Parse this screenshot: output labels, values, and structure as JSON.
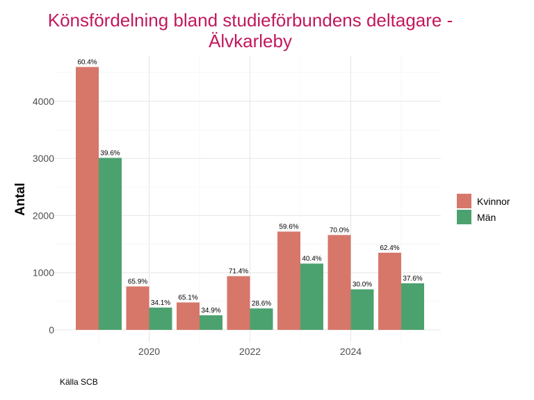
{
  "chart_data": {
    "type": "bar",
    "title_lines": [
      "Könsfördelning bland studieförbundens deltagare -",
      "Älvkarleby"
    ],
    "ylabel": "Antal",
    "xlabel": "",
    "caption": "Källa SCB",
    "years": [
      2019,
      2020,
      2021,
      2022,
      2023,
      2024,
      2025
    ],
    "x_tick_labels": [
      "2020",
      "2022",
      "2024"
    ],
    "x_tick_years": [
      2020,
      2022,
      2024
    ],
    "y_ticks": [
      0,
      1000,
      2000,
      3000,
      4000
    ],
    "ylim": [
      0,
      4800
    ],
    "grid": true,
    "legend_position": "right",
    "series": [
      {
        "name": "Kvinnor",
        "color": "#d6776a",
        "values": [
          4600,
          760,
          480,
          940,
          1720,
          1660,
          1350
        ],
        "labels": [
          "60.4%",
          "65.9%",
          "65.1%",
          "71.4%",
          "59.6%",
          "70.0%",
          "62.4%"
        ]
      },
      {
        "name": "Män",
        "color": "#4ca26f",
        "values": [
          3010,
          390,
          255,
          375,
          1160,
          710,
          815
        ],
        "labels": [
          "39.6%",
          "34.1%",
          "34.9%",
          "28.6%",
          "40.4%",
          "30.0%",
          "37.6%"
        ]
      }
    ]
  }
}
